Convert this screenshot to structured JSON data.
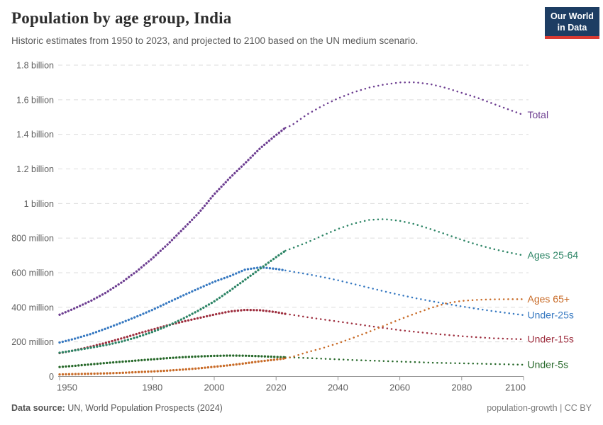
{
  "header": {
    "title": "Population by age group, India",
    "subtitle": "Historic estimates from 1950 to 2023, and projected to 2100 based on the UN medium scenario.",
    "logo_line1": "Our World",
    "logo_line2": "in Data",
    "logo_bg": "#1d3d63",
    "logo_accent": "#d93a32"
  },
  "footer": {
    "source_label": "Data source:",
    "source_rest": "UN, World Population Prospects (2024)",
    "right_text": "population-growth | CC BY"
  },
  "chart_data": {
    "type": "line",
    "title": "Population by age group, India",
    "unit": "millions of people",
    "grid": "dashed horizontal gridlines",
    "legend_position": "right edge line labels",
    "historic_until": 2023,
    "projection_note": "dotted after 2023 (UN medium scenario)",
    "xlim": [
      1950,
      2100
    ],
    "ylim": [
      0,
      1800
    ],
    "xticks": [
      1950,
      1980,
      2000,
      2020,
      2040,
      2060,
      2080,
      2100
    ],
    "yticks": [
      {
        "value": 1800,
        "label": "1.8 billion"
      },
      {
        "value": 1600,
        "label": "1.6 billion"
      },
      {
        "value": 1400,
        "label": "1.4 billion"
      },
      {
        "value": 1200,
        "label": "1.2 billion"
      },
      {
        "value": 1000,
        "label": "1 billion"
      },
      {
        "value": 800,
        "label": "800 million"
      },
      {
        "value": 600,
        "label": "600 million"
      },
      {
        "value": 400,
        "label": "400 million"
      },
      {
        "value": 200,
        "label": "200 million"
      },
      {
        "value": 0,
        "label": "0"
      }
    ],
    "x": [
      1950,
      1955,
      1960,
      1965,
      1970,
      1975,
      1980,
      1985,
      1990,
      1995,
      2000,
      2005,
      2010,
      2015,
      2020,
      2023,
      2025,
      2030,
      2035,
      2040,
      2045,
      2050,
      2055,
      2060,
      2065,
      2070,
      2075,
      2080,
      2085,
      2090,
      2095,
      2100
    ],
    "series": [
      {
        "name": "Under-25s",
        "label": "Under-25s",
        "color": "#3779c1",
        "values": [
          196,
          219,
          245,
          277,
          311,
          347,
          385,
          427,
          469,
          509,
          548,
          580,
          618,
          631,
          622,
          613,
          607,
          592,
          575,
          556,
          535,
          513,
          492,
          472,
          453,
          436,
          420,
          405,
          391,
          378,
          366,
          355
        ]
      },
      {
        "name": "Under-15s",
        "label": "Under-15s",
        "color": "#9e2f3f",
        "values": [
          135,
          152,
          172,
          195,
          220,
          246,
          271,
          296,
          318,
          338,
          358,
          376,
          385,
          383,
          372,
          362,
          357,
          343,
          330,
          318,
          305,
          292,
          280,
          268,
          258,
          249,
          241,
          233,
          227,
          221,
          218,
          215
        ]
      },
      {
        "name": "Under-5s",
        "label": "Under-5s",
        "color": "#266829",
        "values": [
          55,
          62,
          70,
          78,
          85,
          92,
          99,
          106,
          112,
          116,
          119,
          121,
          120,
          117,
          113,
          111,
          110,
          107,
          103,
          99,
          95,
          92,
          89,
          86,
          83,
          80,
          78,
          76,
          74,
          72,
          70,
          68
        ]
      },
      {
        "name": "Ages 65+",
        "label": "Ages 65+",
        "color": "#c86a26",
        "values": [
          12,
          14,
          16,
          18,
          21,
          25,
          29,
          34,
          40,
          47,
          56,
          65,
          76,
          88,
          98,
          105,
          112,
          140,
          164,
          192,
          224,
          258,
          294,
          330,
          364,
          396,
          423,
          437,
          443,
          446,
          447,
          447
        ]
      },
      {
        "name": "Ages 25-64",
        "label": "Ages 25-64",
        "color": "#2c8465",
        "values": [
          137,
          151,
          166,
          182,
          202,
          227,
          257,
          293,
          335,
          382,
          434,
          495,
          560,
          625,
          690,
          727,
          740,
          775,
          815,
          853,
          884,
          905,
          910,
          900,
          880,
          852,
          822,
          790,
          762,
          738,
          718,
          700
        ]
      },
      {
        "name": "Total",
        "label": "Total",
        "color": "#6d3e91",
        "values": [
          357,
          395,
          436,
          485,
          543,
          609,
          683,
          765,
          854,
          946,
          1054,
          1147,
          1234,
          1322,
          1396,
          1438,
          1452,
          1515,
          1565,
          1608,
          1643,
          1670,
          1688,
          1700,
          1701,
          1690,
          1668,
          1640,
          1612,
          1578,
          1545,
          1512
        ]
      }
    ]
  }
}
